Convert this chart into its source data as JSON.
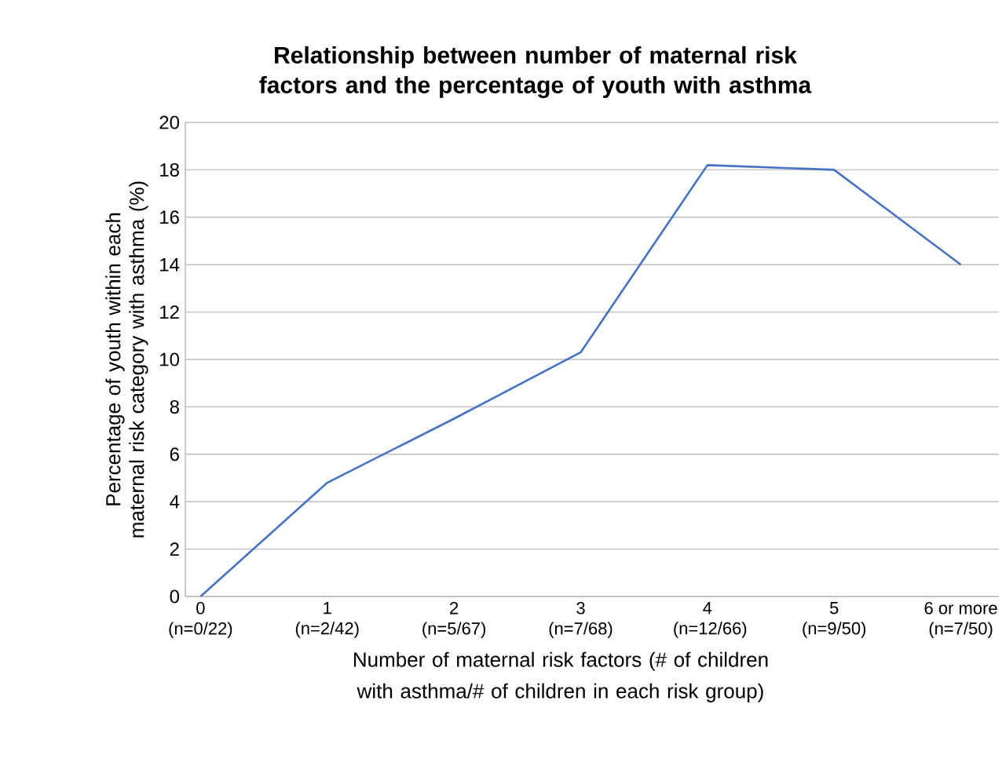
{
  "chart_data": {
    "type": "line",
    "title": "Relationship between number of maternal risk factors and the percentage of youth with asthma",
    "xlabel": "Number of maternal risk factors (# of children with asthma/# of children in each risk group)",
    "ylabel": "Percentage of youth within each maternal risk category with asthma (%)",
    "categories": [
      "0 (n=0/22)",
      "1 (n=2/42)",
      "2 (n=5/67)",
      "3 (n=7/68)",
      "4 (n=12/66)",
      "5 (n=9/50)",
      "6 or more (n=7/50)"
    ],
    "series": [
      {
        "color": "#4472c4",
        "values": [
          0,
          4.8,
          7.5,
          10.3,
          18.2,
          18.0,
          14.0
        ]
      }
    ],
    "ylim": [
      0,
      20
    ],
    "yticks": [
      0,
      2,
      4,
      6,
      8,
      10,
      12,
      14,
      16,
      18,
      20
    ],
    "grid": "y"
  }
}
